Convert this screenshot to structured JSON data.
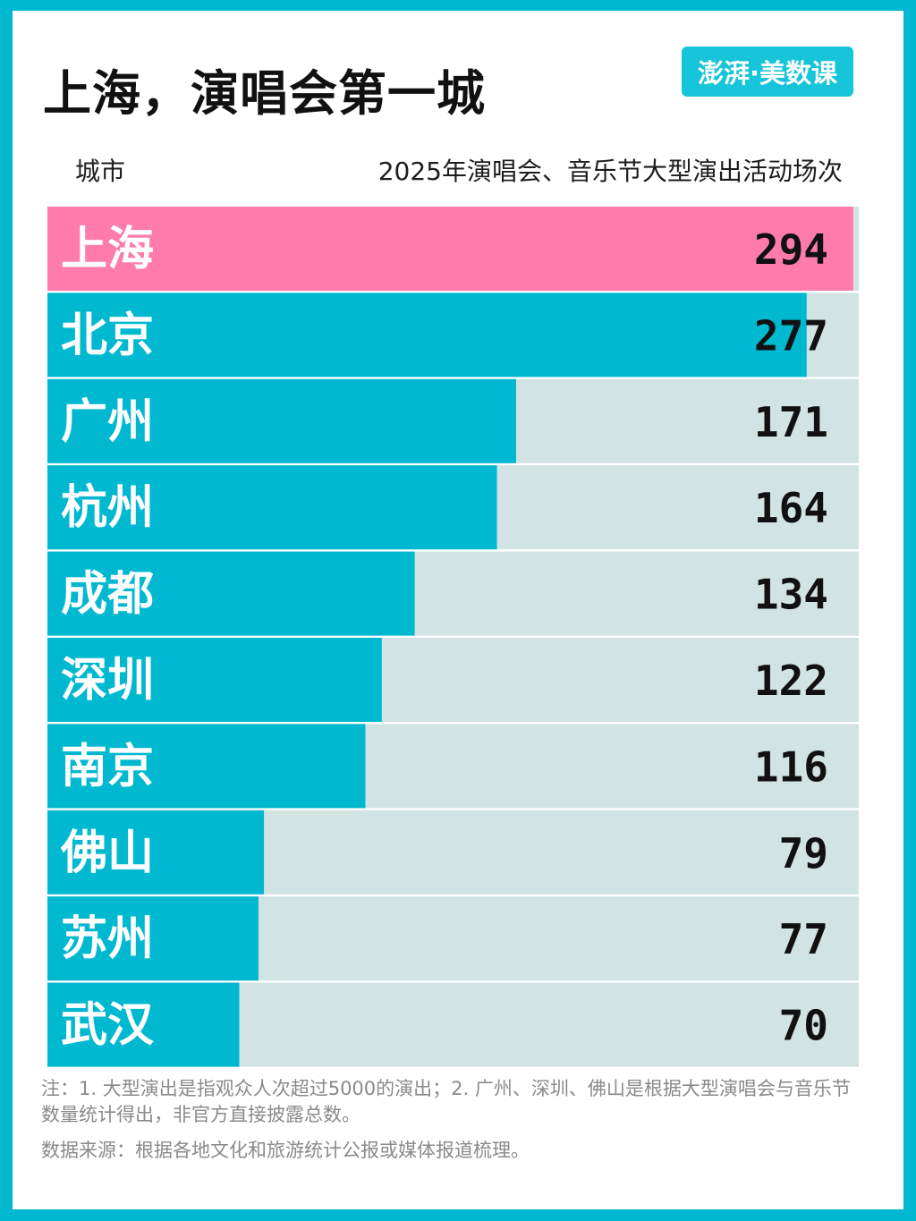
{
  "title": "上海，演唱会第一城",
  "logo": "澎湃·美数课",
  "colors": {
    "frame": "#00b9d1",
    "bar": "#00b9d1",
    "highlight": "#ff7bac",
    "track": "#d2e3e3",
    "city_text": "#ffffff",
    "value_text": "#111111"
  },
  "chart_data": {
    "type": "bar",
    "orientation": "horizontal",
    "title": "上海，演唱会第一城",
    "category_header": "城市",
    "value_header": "2025年演唱会、音乐节大型演出活动场次",
    "categories": [
      "上海",
      "北京",
      "广州",
      "杭州",
      "成都",
      "深圳",
      "南京",
      "佛山",
      "苏州",
      "武汉"
    ],
    "values": [
      294,
      277,
      171,
      164,
      134,
      122,
      116,
      79,
      77,
      70
    ],
    "highlight_index": 0,
    "xlim": [
      0,
      296
    ]
  },
  "notes": "注：1. 大型演出是指观众人次超过5000的演出；2. 广州、深圳、佛山是根据大型演唱会与音乐节数量统计得出，非官方直接披露总数。",
  "source": "数据来源：根据各地文化和旅游统计公报或媒体报道梳理。"
}
